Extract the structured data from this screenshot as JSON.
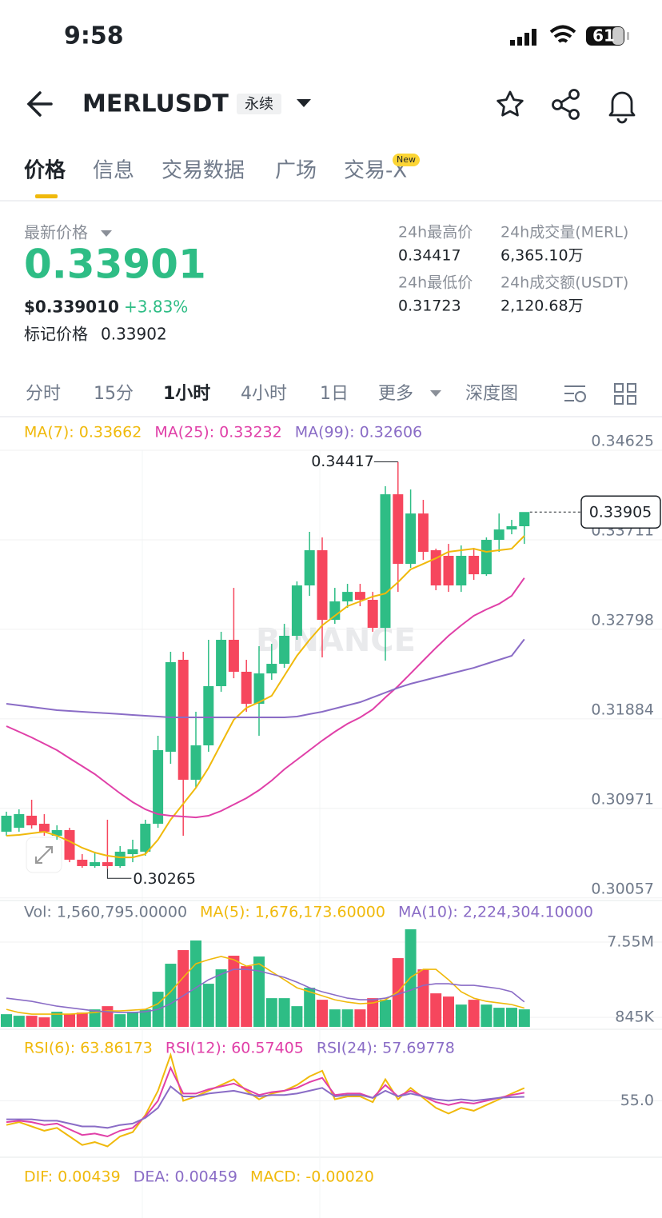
{
  "status": {
    "time": "9:58",
    "battery": "61"
  },
  "header": {
    "symbol": "MERLUSDT",
    "badge": "永续"
  },
  "tabs": [
    "价格",
    "信息",
    "交易数据",
    "广场",
    "交易-X"
  ],
  "new_badge": "New",
  "ticker": {
    "last_label": "最新价格",
    "last": "0.33901",
    "usd": "$0.339010",
    "change": "+3.83%",
    "mark_label": "标记价格",
    "mark": "0.33902",
    "stats": [
      {
        "label": "24h最高价",
        "value": "0.34417"
      },
      {
        "label": "24h成交量(MERL)",
        "value": "6,365.10万"
      },
      {
        "label": "24h最低价",
        "value": "0.31723"
      },
      {
        "label": "24h成交额(USDT)",
        "value": "2,120.68万"
      }
    ]
  },
  "intervals": [
    "分时",
    "15分",
    "1小时",
    "4小时",
    "1日",
    "更多",
    "深度图"
  ],
  "watermark": "BINANCE",
  "chart_data": [
    {
      "type": "candlestick",
      "up_color": "#2ebd85",
      "down_color": "#f6465d",
      "ylim": [
        0.29949,
        0.34723
      ],
      "yticks": [
        0.34625,
        0.33711,
        0.32798,
        0.31884,
        0.30971,
        0.30057
      ],
      "candles": [
        {
          "o": 0.30643,
          "h": 0.30847,
          "l": 0.30602,
          "c": 0.30806
        },
        {
          "o": 0.30683,
          "h": 0.30871,
          "l": 0.30643,
          "c": 0.30822
        },
        {
          "o": 0.30806,
          "h": 0.30969,
          "l": 0.30675,
          "c": 0.30708
        },
        {
          "o": 0.30724,
          "h": 0.30822,
          "l": 0.30602,
          "c": 0.30643
        },
        {
          "o": 0.30602,
          "h": 0.30708,
          "l": 0.30561,
          "c": 0.30659
        },
        {
          "o": 0.30659,
          "h": 0.30683,
          "l": 0.30332,
          "c": 0.30357
        },
        {
          "o": 0.30357,
          "h": 0.30414,
          "l": 0.30275,
          "c": 0.30292
        },
        {
          "o": 0.30292,
          "h": 0.30439,
          "l": 0.30275,
          "c": 0.30332
        },
        {
          "o": 0.30332,
          "h": 0.30765,
          "l": 0.30265,
          "c": 0.30292
        },
        {
          "o": 0.30292,
          "h": 0.30496,
          "l": 0.30275,
          "c": 0.30439
        },
        {
          "o": 0.30414,
          "h": 0.30561,
          "l": 0.30332,
          "c": 0.30463
        },
        {
          "o": 0.30439,
          "h": 0.30765,
          "l": 0.30398,
          "c": 0.30724
        },
        {
          "o": 0.30724,
          "h": 0.31622,
          "l": 0.30683,
          "c": 0.31475
        },
        {
          "o": 0.31459,
          "h": 0.32479,
          "l": 0.31336,
          "c": 0.32373
        },
        {
          "o": 0.32397,
          "h": 0.32479,
          "l": 0.30602,
          "c": 0.31173
        },
        {
          "o": 0.31173,
          "h": 0.31867,
          "l": 0.31091,
          "c": 0.31524
        },
        {
          "o": 0.31524,
          "h": 0.32601,
          "l": 0.31459,
          "c": 0.32128
        },
        {
          "o": 0.32128,
          "h": 0.32683,
          "l": 0.32071,
          "c": 0.32601
        },
        {
          "o": 0.32601,
          "h": 0.33131,
          "l": 0.32209,
          "c": 0.32275
        },
        {
          "o": 0.32275,
          "h": 0.32397,
          "l": 0.31867,
          "c": 0.31948
        },
        {
          "o": 0.31948,
          "h": 0.32536,
          "l": 0.31622,
          "c": 0.32258
        },
        {
          "o": 0.32258,
          "h": 0.3256,
          "l": 0.32193,
          "c": 0.32356
        },
        {
          "o": 0.32356,
          "h": 0.32764,
          "l": 0.32315,
          "c": 0.32642
        },
        {
          "o": 0.32642,
          "h": 0.33197,
          "l": 0.32601,
          "c": 0.33156
        },
        {
          "o": 0.33156,
          "h": 0.33703,
          "l": 0.3305,
          "c": 0.33515
        },
        {
          "o": 0.33515,
          "h": 0.33646,
          "l": 0.32422,
          "c": 0.32805
        },
        {
          "o": 0.32805,
          "h": 0.33131,
          "l": 0.32764,
          "c": 0.32993
        },
        {
          "o": 0.32993,
          "h": 0.33172,
          "l": 0.32927,
          "c": 0.3309
        },
        {
          "o": 0.3309,
          "h": 0.33172,
          "l": 0.32944,
          "c": 0.33009
        },
        {
          "o": 0.33009,
          "h": 0.3309,
          "l": 0.32683,
          "c": 0.32723
        },
        {
          "o": 0.32723,
          "h": 0.34168,
          "l": 0.32389,
          "c": 0.34086
        },
        {
          "o": 0.34086,
          "h": 0.34417,
          "l": 0.3309,
          "c": 0.33376
        },
        {
          "o": 0.33376,
          "h": 0.34135,
          "l": 0.33335,
          "c": 0.3389
        },
        {
          "o": 0.3389,
          "h": 0.34029,
          "l": 0.33417,
          "c": 0.33499
        },
        {
          "o": 0.33515,
          "h": 0.33531,
          "l": 0.33107,
          "c": 0.33156
        },
        {
          "o": 0.33458,
          "h": 0.3358,
          "l": 0.3309,
          "c": 0.33156
        },
        {
          "o": 0.33156,
          "h": 0.33564,
          "l": 0.3309,
          "c": 0.33458
        },
        {
          "o": 0.33458,
          "h": 0.33539,
          "l": 0.33213,
          "c": 0.3327
        },
        {
          "o": 0.3327,
          "h": 0.33646,
          "l": 0.33254,
          "c": 0.33621
        },
        {
          "o": 0.33621,
          "h": 0.3389,
          "l": 0.33499,
          "c": 0.33727
        },
        {
          "o": 0.33727,
          "h": 0.33825,
          "l": 0.33678,
          "c": 0.3376
        },
        {
          "o": 0.3376,
          "h": 0.3389,
          "l": 0.3358,
          "c": 0.33905
        }
      ],
      "series": [
        {
          "name": "MA(7): 0.33662",
          "color": "#f0b90b",
          "values": [
            0.30602,
            0.3061,
            0.30626,
            0.30643,
            0.30602,
            0.30545,
            0.30479,
            0.3043,
            0.30398,
            0.30381,
            0.30381,
            0.30414,
            0.30561,
            0.30765,
            0.30928,
            0.31091,
            0.31295,
            0.3154,
            0.31785,
            0.31907,
            0.31965,
            0.3203,
            0.32234,
            0.32438,
            0.32601,
            0.32748,
            0.32846,
            0.32944,
            0.32993,
            0.33042,
            0.33074,
            0.33189,
            0.33319,
            0.33376,
            0.33433,
            0.33499,
            0.33515,
            0.33531,
            0.33499,
            0.33515,
            0.33531,
            0.33662
          ]
        },
        {
          "name": "MA(25): 0.33232",
          "color": "#e040a8",
          "values": [
            0.3172,
            0.31663,
            0.31605,
            0.3154,
            0.31475,
            0.31393,
            0.31312,
            0.3123,
            0.31132,
            0.31034,
            0.30945,
            0.30871,
            0.30822,
            0.30806,
            0.30798,
            0.30789,
            0.30806,
            0.30855,
            0.3092,
            0.30985,
            0.31067,
            0.31165,
            0.31279,
            0.31377,
            0.31475,
            0.31573,
            0.31663,
            0.31744,
            0.31809,
            0.31891,
            0.32013,
            0.32128,
            0.32258,
            0.32389,
            0.32519,
            0.32642,
            0.32748,
            0.32846,
            0.32911,
            0.32968,
            0.3305,
            0.33232
          ]
        },
        {
          "name": "MA(99): 0.32606",
          "color": "#8a6cc6",
          "values": [
            0.31948,
            0.31932,
            0.31916,
            0.31899,
            0.31883,
            0.31875,
            0.31867,
            0.31859,
            0.31851,
            0.31843,
            0.31834,
            0.31826,
            0.31818,
            0.3181,
            0.3181,
            0.3181,
            0.3181,
            0.3181,
            0.3181,
            0.3181,
            0.3181,
            0.3181,
            0.3181,
            0.31818,
            0.31843,
            0.31867,
            0.31899,
            0.31932,
            0.31965,
            0.32013,
            0.32062,
            0.32111,
            0.32152,
            0.32185,
            0.32218,
            0.3225,
            0.32283,
            0.32315,
            0.32356,
            0.32397,
            0.32438,
            0.32606
          ]
        }
      ]
    },
    {
      "type": "volume",
      "ylim": [
        0,
        8834000
      ],
      "yticks": [
        {
          "value": 7550000,
          "label": "7.55M"
        },
        {
          "value": 845000,
          "label": "845K"
        }
      ],
      "bars": {
        "name": "Vol: 1,560,795.00000",
        "values": [
          1130000,
          988000,
          988000,
          845000,
          1344000,
          1130000,
          1273000,
          1558000,
          1844000,
          1130000,
          1344000,
          1558000,
          3128000,
          5624000,
          6837000,
          7693000,
          3841000,
          5125000,
          6337000,
          5410000,
          6266000,
          2557000,
          2557000,
          1844000,
          3484000,
          2414000,
          1558000,
          1558000,
          1558000,
          2557000,
          2414000,
          6123000,
          8691000,
          5125000,
          2985000,
          2700000,
          1986000,
          2414000,
          1986000,
          1701000,
          1701000,
          1560795
        ]
      },
      "series": [
        {
          "name": "MA(5): 1,676,173.60000",
          "color": "#f0b90b",
          "values": [
            1558000,
            1273000,
            1130000,
            1130000,
            1130000,
            1130000,
            1202000,
            1273000,
            1416000,
            1416000,
            1487000,
            1558000,
            2058000,
            3128000,
            4412000,
            5624000,
            5981000,
            6266000,
            5981000,
            5410000,
            5624000,
            4911000,
            4198000,
            3484000,
            3128000,
            2771000,
            2414000,
            2200000,
            2058000,
            2129000,
            2414000,
            3128000,
            4412000,
            5125000,
            5125000,
            4198000,
            3128000,
            2557000,
            2272000,
            2129000,
            1986000,
            1676173.6
          ]
        },
        {
          "name": "MA(10): 2,224,304.10000",
          "color": "#8a6cc6",
          "values": [
            2557000,
            2414000,
            2272000,
            2058000,
            1844000,
            1701000,
            1558000,
            1416000,
            1344000,
            1273000,
            1273000,
            1344000,
            1558000,
            2058000,
            2771000,
            3484000,
            4198000,
            4697000,
            5125000,
            5125000,
            4982000,
            4697000,
            4412000,
            3984000,
            3484000,
            3128000,
            2842000,
            2557000,
            2414000,
            2414000,
            2557000,
            2914000,
            3270000,
            3698000,
            3841000,
            3841000,
            3698000,
            3698000,
            3556000,
            3413000,
            3128000,
            2224304.1
          ]
        }
      ]
    },
    {
      "type": "line",
      "ylim": [
        16,
        100
      ],
      "yticks": [
        {
          "value": 55,
          "label": "55.0"
        }
      ],
      "series": [
        {
          "name": "RSI(6): 63.86173",
          "color": "#f0b90b",
          "values": [
            38,
            40,
            37,
            34,
            36,
            30,
            24,
            26,
            23,
            30,
            33,
            45,
            62,
            87,
            55,
            58,
            62,
            66,
            70,
            62,
            56,
            60,
            62,
            66,
            72,
            76,
            56,
            58,
            58,
            54,
            70,
            56,
            64,
            57,
            50,
            46,
            50,
            48,
            52,
            56,
            60,
            63.86173
          ]
        },
        {
          "name": "RSI(12): 60.57405",
          "color": "#e040a8",
          "values": [
            40,
            41,
            40,
            38,
            39,
            35,
            31,
            32,
            30,
            34,
            36,
            44,
            55,
            78,
            60,
            60,
            63,
            65,
            67,
            63,
            59,
            61,
            62,
            64,
            68,
            71,
            59,
            60,
            60,
            57,
            66,
            58,
            62,
            58,
            54,
            52,
            54,
            53,
            55,
            57,
            59,
            60.57405
          ]
        },
        {
          "name": "RSI(24): 57.69778",
          "color": "#8a6cc6",
          "values": [
            42,
            42,
            42,
            41,
            41,
            39,
            37,
            37,
            36,
            38,
            39,
            43,
            50,
            65,
            58,
            58,
            60,
            61,
            62,
            60,
            58,
            59,
            59,
            60,
            62,
            64,
            58,
            59,
            59,
            57,
            62,
            58,
            60,
            58,
            56,
            55,
            56,
            55,
            56,
            57,
            57.5,
            57.69778
          ]
        }
      ]
    },
    {
      "type": "macd",
      "legend": [
        {
          "name": "DIF: 0.00439",
          "color": "#f0b90b"
        },
        {
          "name": "DEA: 0.00459",
          "color": "#8a6cc6"
        },
        {
          "name": "MACD: -0.00020",
          "color": "#f0b90b"
        }
      ]
    }
  ]
}
